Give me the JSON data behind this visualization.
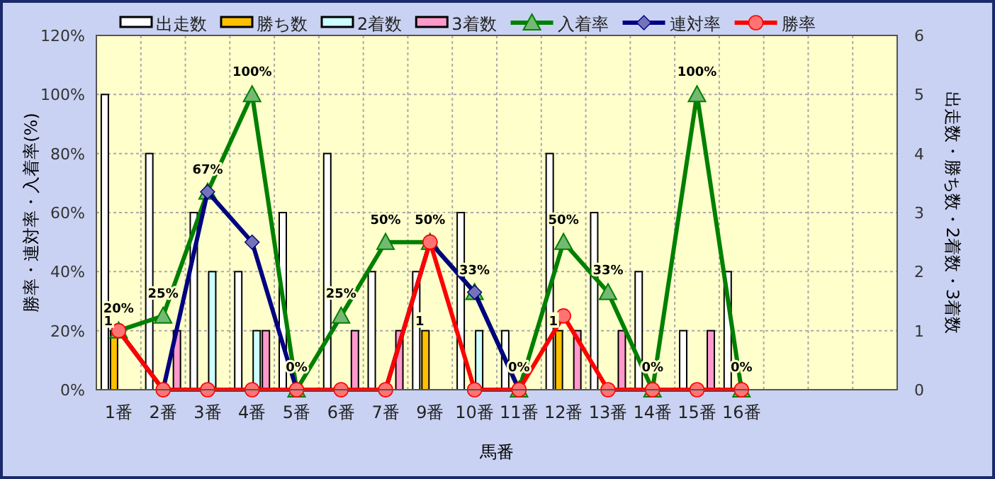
{
  "chart_data": {
    "type": "bar",
    "xlabel": "馬番",
    "ylabel": "勝率・連対率・入着率(%)",
    "y2label": "出走数・勝ち数・2着数・3着数",
    "categories": [
      "1番",
      "2番",
      "3番",
      "4番",
      "5番",
      "6番",
      "7番",
      "9番",
      "10番",
      "11番",
      "12番",
      "13番",
      "14番",
      "15番",
      "16番",
      null,
      null,
      null
    ],
    "series": [
      {
        "name": "出走数",
        "axis": "y2",
        "color": "#ffffff",
        "values": [
          5,
          4,
          3,
          2,
          3,
          4,
          2,
          2,
          3,
          1,
          4,
          3,
          2,
          1,
          2,
          null,
          null,
          null
        ]
      },
      {
        "name": "勝ち数",
        "axis": "y2",
        "color": "#ffc000",
        "values": [
          1,
          0,
          0,
          0,
          0,
          0,
          0,
          1,
          0,
          0,
          1,
          0,
          0,
          0,
          0,
          null,
          null,
          null
        ],
        "value_labels": [
          "1",
          null,
          null,
          null,
          null,
          null,
          null,
          "1",
          null,
          null,
          "1",
          null,
          null,
          null,
          null,
          null,
          null,
          null
        ]
      },
      {
        "name": "2着数",
        "axis": "y2",
        "color": "#ccffff",
        "values": [
          0,
          0,
          2,
          1,
          0,
          0,
          0,
          0,
          1,
          0,
          0,
          0,
          0,
          0,
          0,
          null,
          null,
          null
        ]
      },
      {
        "name": "3着数",
        "axis": "y2",
        "color": "#ff99cc",
        "values": [
          0,
          1,
          0,
          1,
          0,
          1,
          1,
          0,
          0,
          0,
          1,
          1,
          0,
          1,
          0,
          null,
          null,
          null
        ]
      },
      {
        "name": "入着率",
        "type": "line",
        "color": "#008000",
        "marker": "triangle",
        "values": [
          20,
          25,
          67,
          100,
          0,
          25,
          50,
          50,
          33,
          0,
          50,
          33,
          0,
          100,
          0,
          null,
          null,
          null
        ],
        "value_labels": [
          "20%",
          "25%",
          "67%",
          "100%",
          "0%",
          "25%",
          "50%",
          "50%",
          "33%",
          "0%",
          "50%",
          "33%",
          "0%",
          "100%",
          "0%",
          null,
          null,
          null
        ]
      },
      {
        "name": "連対率",
        "type": "line",
        "color": "#000080",
        "marker": "diamond",
        "values": [
          20,
          0,
          67,
          50,
          0,
          0,
          0,
          50,
          33,
          0,
          null,
          null,
          null,
          null,
          null,
          null,
          null,
          null
        ]
      },
      {
        "name": "勝率",
        "type": "line",
        "color": "#ff0000",
        "marker": "circle",
        "values": [
          20,
          0,
          0,
          0,
          0,
          0,
          0,
          50,
          0,
          0,
          25,
          0,
          0,
          0,
          0,
          null,
          null,
          null
        ]
      }
    ],
    "ylim": [
      0,
      120
    ],
    "yticks": [
      {
        "value": 0,
        "label": "0%"
      },
      {
        "value": 20,
        "label": "20%"
      },
      {
        "value": 40,
        "label": "40%"
      },
      {
        "value": 60,
        "label": "60%"
      },
      {
        "value": 80,
        "label": "80%"
      },
      {
        "value": 100,
        "label": "100%"
      },
      {
        "value": 120,
        "label": "120%"
      }
    ],
    "y2lim": [
      0,
      6
    ],
    "y2ticks": [
      0,
      1,
      2,
      3,
      4,
      5,
      6
    ],
    "grid": true,
    "legend": "top"
  }
}
